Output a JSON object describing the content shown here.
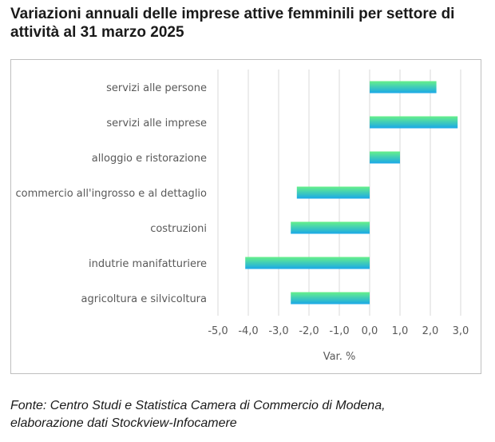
{
  "title": "Variazioni annuali delle imprese attive femminili per settore di attività al 31 marzo 2025",
  "source": {
    "line1": "Fonte: Centro Studi e Statistica Camera di Commercio di Modena,",
    "line2": "elaborazione dati Stockview-Infocamere"
  },
  "chart_data": {
    "type": "bar",
    "orientation": "horizontal",
    "categories": [
      "servizi alle persone",
      "servizi alle imprese",
      "alloggio e ristorazione",
      "commercio all'ingrosso e al dettaglio",
      "costruzioni",
      "indutrie manifatturiere",
      "agricoltura e silvicoltura"
    ],
    "values": [
      2.2,
      2.9,
      1.0,
      -2.4,
      -2.6,
      -4.1,
      -2.6
    ],
    "xlabel": "Var. %",
    "xlim": [
      -5.0,
      3.0
    ],
    "xticks": [
      "-5,0",
      "-4,0",
      "-3,0",
      "-2,0",
      "-1,0",
      "0,0",
      "1,0",
      "2,0",
      "3,0"
    ],
    "grid": "vertical",
    "legend": "none",
    "colors": {
      "bar_top": "#66f08a",
      "bar_bottom": "#1aa8e8",
      "grid": "#d9d9d9"
    }
  }
}
